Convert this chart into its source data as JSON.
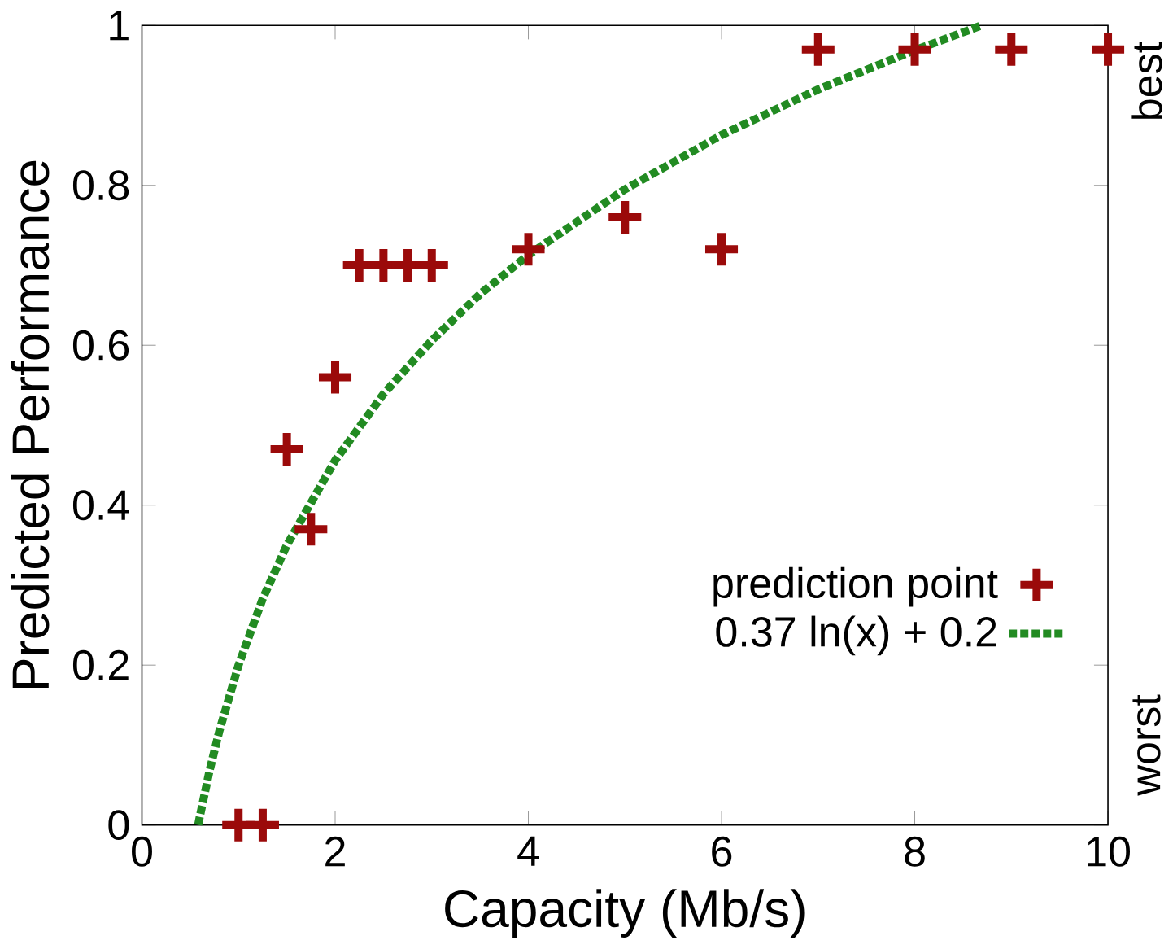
{
  "chart_data": {
    "type": "scatter",
    "xlabel": "Capacity (Mb/s)",
    "ylabel": "Predicted Performance",
    "xlim": [
      0,
      10
    ],
    "ylim": [
      0,
      1
    ],
    "xticks": [
      0,
      2,
      4,
      6,
      8,
      10
    ],
    "yticks": [
      0,
      0.2,
      0.4,
      0.6,
      0.8,
      1
    ],
    "grid": false,
    "legend": "bottom right",
    "annotations": [
      "best",
      "worst"
    ],
    "series": [
      {
        "name": "prediction point",
        "marker": "cross",
        "color": "#9b0a0a",
        "x": [
          1,
          1.25,
          1.5,
          1.75,
          2,
          2.25,
          2.5,
          2.75,
          3,
          4,
          5,
          6,
          7,
          8,
          9,
          10
        ],
        "values": [
          0,
          0,
          0.47,
          0.37,
          0.56,
          0.7,
          0.7,
          0.7,
          0.7,
          0.72,
          0.76,
          0.72,
          0.97,
          0.97,
          0.97,
          0.97
        ]
      },
      {
        "name": "0.37 ln(x) + 0.2",
        "type": "line",
        "line_style": "dotted",
        "color": "#228b22",
        "x": [
          0.582,
          0.6,
          0.7,
          0.8,
          1,
          1.25,
          1.5,
          2,
          2.5,
          3,
          3.5,
          4,
          5,
          6,
          7,
          8,
          8.69
        ],
        "values": [
          0,
          0.011,
          0.068,
          0.117,
          0.2,
          0.283,
          0.35,
          0.456,
          0.539,
          0.606,
          0.664,
          0.713,
          0.795,
          0.863,
          0.92,
          0.969,
          1
        ]
      }
    ]
  }
}
